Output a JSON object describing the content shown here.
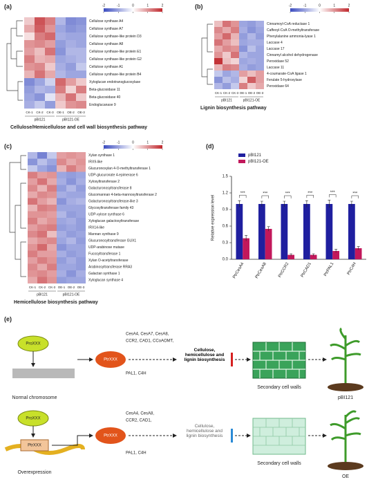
{
  "colorscale": {
    "range": [
      -2,
      2
    ],
    "ticks": [
      -2,
      -1,
      0,
      1,
      2
    ]
  },
  "panels": {
    "a": {
      "label": "(a)",
      "caption": "Cellulose/Hemicellulose and cell wall biosynthesis pathway",
      "columns": [
        "CK-1",
        "CK-2",
        "CK-3",
        "OE-1",
        "OE-2",
        "OE-3"
      ],
      "groups": [
        "pBI121",
        "pBI121-OE"
      ],
      "rows": [
        "Cellulose synthase A4",
        "Cellulose synthase A7",
        "Cellulose synthase-like protein D3",
        "Cellulose synthase A8",
        "Cellulose synthase-like protein E1",
        "Cellulose synthase-like protein G2",
        "Cellulose synthase A1",
        "Cellulose synthase-like protein B4",
        "Xyloglucan endotransglucosylase",
        "Beta-glucosidase 11",
        "Beta-glucosidase 40",
        "Endoglucanase 9"
      ],
      "values": [
        [
          0.5,
          1.6,
          1.2,
          -0.8,
          -1.3,
          -1.2
        ],
        [
          0.8,
          1.5,
          1.0,
          -1.0,
          -1.2,
          -1.1
        ],
        [
          0.3,
          1.2,
          1.4,
          -0.9,
          -1.0,
          -1.0
        ],
        [
          1.0,
          1.1,
          0.9,
          -1.1,
          -0.9,
          -1.0
        ],
        [
          0.9,
          0.6,
          1.3,
          -1.2,
          -0.8,
          -0.8
        ],
        [
          1.2,
          0.7,
          0.8,
          -1.0,
          -0.9,
          -0.8
        ],
        [
          1.0,
          1.1,
          0.5,
          -0.9,
          -1.1,
          -0.6
        ],
        [
          0.7,
          1.3,
          0.8,
          -0.8,
          -1.0,
          -1.0
        ],
        [
          -1.3,
          -1.0,
          -0.5,
          1.4,
          0.9,
          0.5
        ],
        [
          -1.1,
          -0.8,
          -0.9,
          1.2,
          0.4,
          1.2
        ],
        [
          -1.0,
          -1.2,
          -0.3,
          0.7,
          1.3,
          0.5
        ],
        [
          -0.9,
          -0.6,
          -1.1,
          0.5,
          1.0,
          1.1
        ]
      ]
    },
    "b": {
      "label": "(b)",
      "caption": "Lignin biosynthesis pathway",
      "columns": [
        "CK-1",
        "CK-2",
        "CK-3",
        "OE-1",
        "OE-2",
        "OE-3"
      ],
      "groups": [
        "pBI121",
        "pBI121-OE"
      ],
      "rows": [
        "Cinnamoyl-CoA reductase 1",
        "Caffeoyl-CoA O-methyltransferase",
        "Phenylalanine ammonia-lyase 1",
        "Laccase 4",
        "Laccase 17",
        "Cinnamyl alcohol dehydrogenase",
        "Peroxidase 52",
        "Laccase 11",
        "4-coumarate-CoA ligase 1",
        "Ferulate 5-hydroxylase",
        "Peroxidase 64"
      ],
      "values": [
        [
          0.6,
          1.3,
          1.0,
          -1.0,
          -1.1,
          -0.9
        ],
        [
          1.1,
          0.8,
          1.2,
          -0.9,
          -1.2,
          -1.0
        ],
        [
          0.9,
          1.4,
          0.7,
          -1.1,
          -0.8,
          -1.1
        ],
        [
          1.3,
          0.9,
          0.6,
          -1.0,
          -0.9,
          -0.9
        ],
        [
          0.8,
          1.1,
          1.0,
          -1.2,
          -0.7,
          -1.0
        ],
        [
          1.0,
          0.5,
          1.3,
          -0.8,
          -1.0,
          -1.0
        ],
        [
          1.9,
          0.6,
          0.4,
          -1.0,
          -0.9,
          -1.0
        ],
        [
          0.7,
          1.2,
          1.1,
          -0.9,
          -1.1,
          -1.0
        ],
        [
          -0.6,
          -1.0,
          -0.8,
          0.9,
          0.6,
          0.9
        ],
        [
          -1.2,
          -0.7,
          -0.9,
          0.4,
          1.5,
          0.9
        ],
        [
          -0.8,
          -1.1,
          -0.6,
          1.2,
          0.5,
          0.8
        ]
      ]
    },
    "c": {
      "label": "(c)",
      "caption": "Hemicellulose biosynthesis pathway",
      "columns": [
        "CK-1",
        "CK-2",
        "CK-3",
        "OE-1",
        "OE-2",
        "OE-3"
      ],
      "groups": [
        "pBI121",
        "pBI121-OE"
      ],
      "rows": [
        "Xylan synthase 1",
        "IRX9-like",
        "Glucuronoxylan 4-O-methyltransferase 1",
        "UDP-glucuronate 4-epimerase 6",
        "Xylosyltransferase 2",
        "Galacturonosyltransferase 8",
        "Glucomannan 4-beta-mannosyltransferase 2",
        "Galacturonosyltransferase-like 3",
        "Glycosyltransferase family 43",
        "UDP-xylose synthase 6",
        "Xyloglucan galactosyltransferase",
        "IRX14-like",
        "Mannan synthase 9",
        "Glucuronosyltransferase GUX1",
        "UDP-arabinose mutase",
        "Fucosyltransferase 1",
        "Xylan O-acetyltransferase",
        "Arabinosyltransferase RRA3",
        "Galactan synthase 1",
        "Xyloglucan synthase 4"
      ],
      "values": [
        [
          -0.8,
          -1.4,
          -0.6,
          0.9,
          1.0,
          0.9
        ],
        [
          -1.2,
          -0.7,
          -1.0,
          1.1,
          0.8,
          1.0
        ],
        [
          -0.6,
          -1.0,
          -1.2,
          0.7,
          1.2,
          0.9
        ],
        [
          1.2,
          0.9,
          1.0,
          -1.0,
          -1.1,
          -1.0
        ],
        [
          0.9,
          1.3,
          0.8,
          -0.9,
          -1.2,
          -0.9
        ],
        [
          1.1,
          0.7,
          1.2,
          -1.1,
          -0.8,
          -1.1
        ],
        [
          0.8,
          1.1,
          1.0,
          -0.9,
          -1.0,
          -1.0
        ],
        [
          1.3,
          0.9,
          0.7,
          -1.2,
          -0.9,
          -0.8
        ],
        [
          0.7,
          1.2,
          1.1,
          -1.0,
          -1.0,
          -1.0
        ],
        [
          1.0,
          1.0,
          0.9,
          -0.8,
          -1.1,
          -1.0
        ],
        [
          1.2,
          0.8,
          1.0,
          -1.0,
          -0.9,
          -1.1
        ],
        [
          0.9,
          1.1,
          1.2,
          -1.1,
          -1.0,
          -1.1
        ],
        [
          1.1,
          1.3,
          0.6,
          -0.9,
          -1.1,
          -1.0
        ],
        [
          0.8,
          1.0,
          1.1,
          -1.0,
          -0.8,
          -1.1
        ],
        [
          1.0,
          1.4,
          0.8,
          -1.2,
          -1.0,
          -1.0
        ],
        [
          1.2,
          0.9,
          0.9,
          -0.9,
          -1.1,
          -1.0
        ],
        [
          0.9,
          1.2,
          1.0,
          -1.1,
          -0.9,
          -1.1
        ],
        [
          1.1,
          0.8,
          1.2,
          -1.0,
          -1.0,
          -1.1
        ],
        [
          1.0,
          1.1,
          0.9,
          -0.9,
          -1.2,
          -0.9
        ],
        [
          0.8,
          1.3,
          1.0,
          -1.1,
          -1.0,
          -1.0
        ]
      ]
    }
  },
  "chart_data": {
    "type": "bar",
    "label": "(d)",
    "y_label": "Relative expression level",
    "categories": [
      "PtrCesA4",
      "PtrCesA8",
      "PtrCCR2",
      "PtrCAD1",
      "PtrPAL1",
      "PtrC4H"
    ],
    "series": [
      {
        "name": "pBI121",
        "color": "#1f1f9f",
        "values": [
          1.0,
          1.0,
          1.0,
          1.0,
          1.0,
          1.0
        ],
        "errors": [
          0.06,
          0.05,
          0.05,
          0.06,
          0.07,
          0.05
        ]
      },
      {
        "name": "pBI121-OE",
        "color": "#c2185b",
        "values": [
          0.38,
          0.55,
          0.08,
          0.08,
          0.15,
          0.2
        ],
        "errors": [
          0.05,
          0.04,
          0.02,
          0.02,
          0.03,
          0.03
        ]
      }
    ],
    "significance": [
      "***",
      "***",
      "***",
      "***",
      "***",
      "***"
    ],
    "ylim": [
      0,
      1.5
    ],
    "yticks": [
      {
        "value": 0,
        "label": "0.0"
      },
      0.3,
      0.6,
      0.9,
      1.2,
      1.5
    ]
  },
  "diagram": {
    "label": "(e)",
    "promoter": "ProXXX",
    "protein": "PtrXXX",
    "gene_box": "PtrXXX",
    "top_genes_1": "CesA4, CesA7, CesA8,",
    "top_genes_2": "CCR2, CAD1, CCoAOMT,",
    "top_genes_3": "PAL1, C4H",
    "top_pathway": "Cellulose, hemicellulose and lignin biosynthesis",
    "top_wall": "Secondary cell walls",
    "top_chrom": "Normal chromosome",
    "top_plant": "pBI121",
    "bot_genes_1": "CesA4, CesA8,",
    "bot_genes_2": "CCR2, CAD1,",
    "bot_genes_3": "PAL1, C4H",
    "bot_pathway": "Cellulose, hemicellulose and lignin biosynthesis",
    "bot_wall": "Secondary cell walls",
    "bot_chrom": "Overexpression",
    "bot_plant": "OE"
  }
}
